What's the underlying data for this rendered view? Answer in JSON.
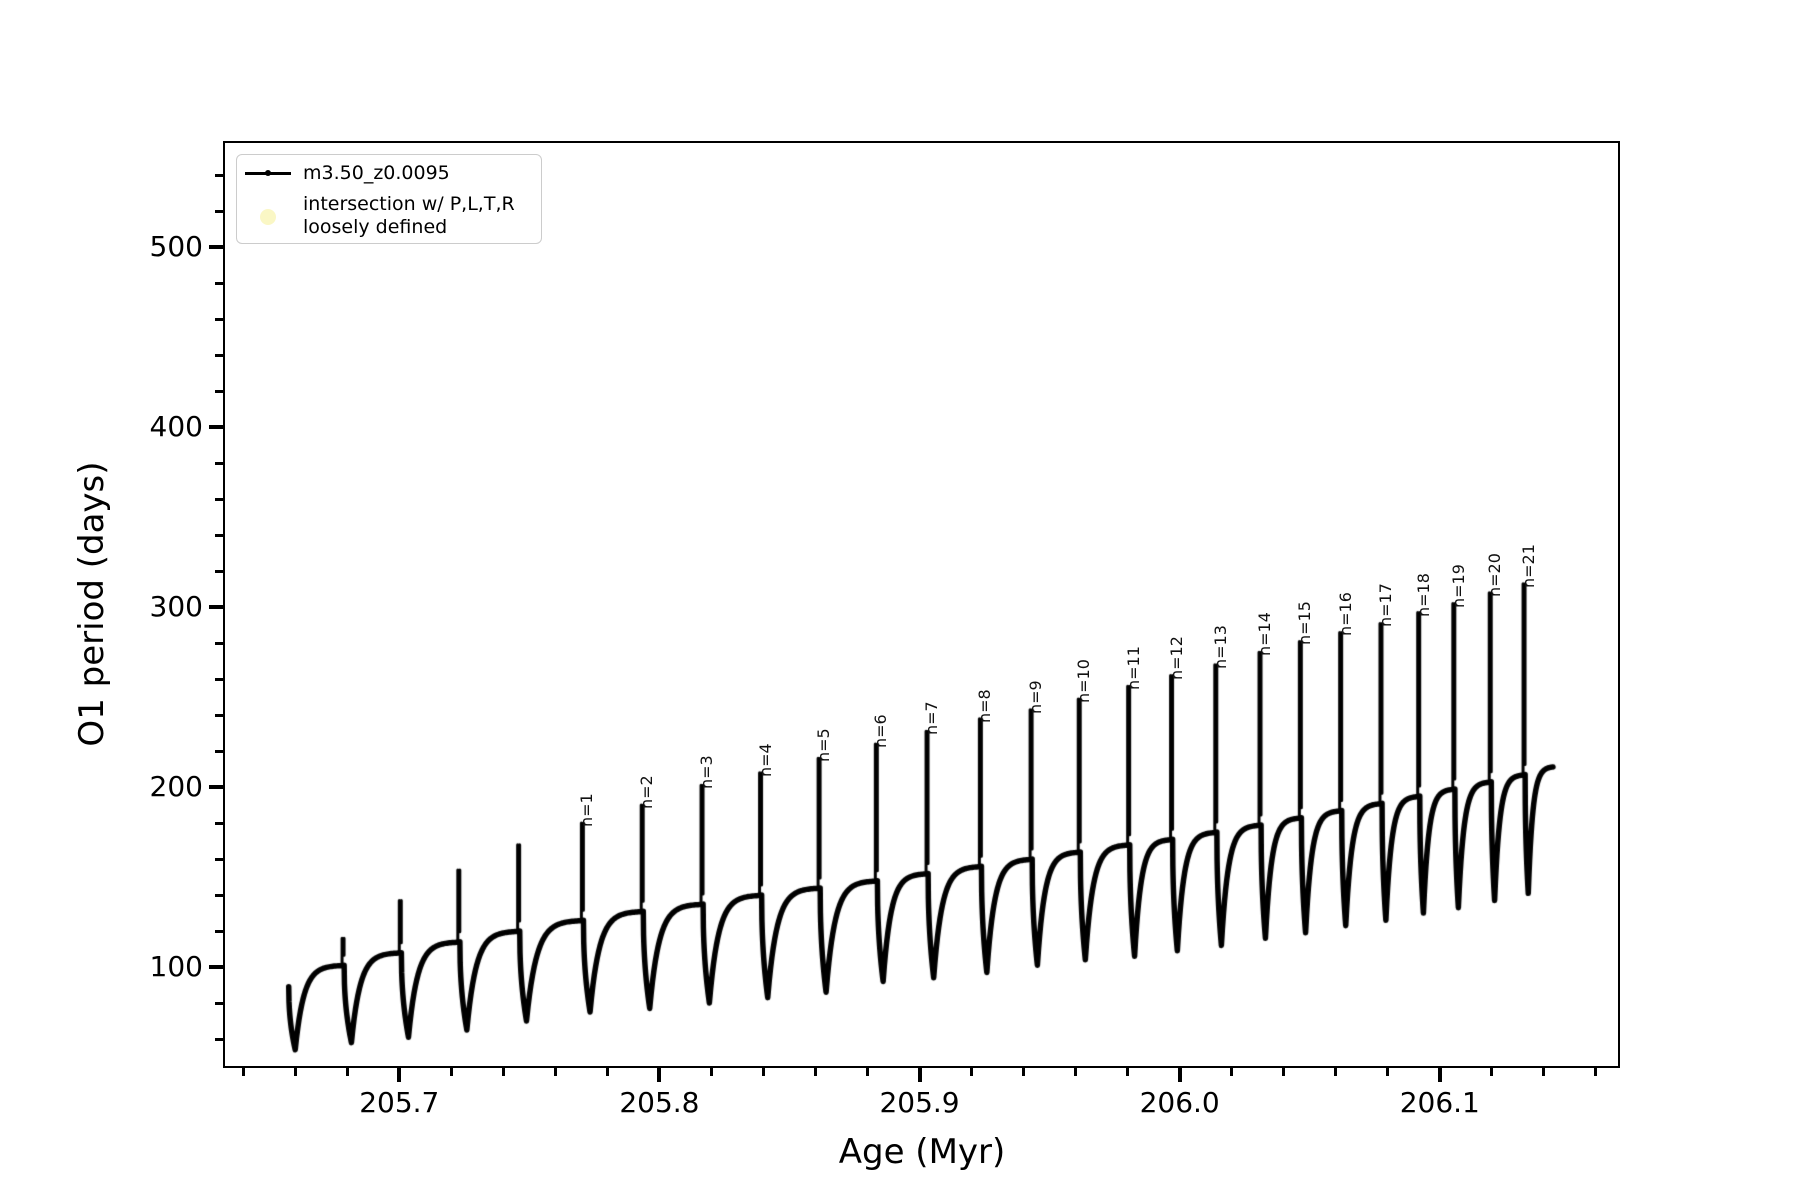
{
  "figure": {
    "background": "#ffffff"
  },
  "axes": {
    "xlabel": "Age (Myr)",
    "ylabel": "O1 period (days)",
    "xlim": [
      205.633,
      206.1685
    ],
    "ylim": [
      45,
      558
    ],
    "x_major_ticks": [
      205.7,
      205.8,
      205.9,
      206.0,
      206.1
    ],
    "x_major_labels": [
      "205.7",
      "205.8",
      "205.9",
      "206.0",
      "206.1"
    ],
    "x_minor_start": 205.64,
    "x_minor_end": 206.16,
    "x_minor_step": 0.02,
    "y_major_ticks": [
      100,
      200,
      300,
      400,
      500
    ],
    "y_major_labels": [
      "100",
      "200",
      "300",
      "400",
      "500"
    ],
    "y_minor_start": 60,
    "y_minor_end": 540,
    "y_minor_step": 20
  },
  "legend": {
    "entries": [
      {
        "marker": "line-dot",
        "color": "#000000",
        "label": "m3.50_z0.0095"
      },
      {
        "marker": "circle",
        "color": "#faf7c5",
        "label_lines": [
          "intersection w/ P,L,T,R",
          "loosely defined"
        ]
      }
    ]
  },
  "chart_data": {
    "type": "line",
    "series_name": "m3.50_z0.0095",
    "xlabel": "Age (Myr)",
    "ylabel": "O1 period (days)",
    "line_color": "#000000",
    "marker": "point",
    "start_point": {
      "age": 205.6575,
      "period": 89
    },
    "first_dip": {
      "age": 205.66,
      "period": 54
    },
    "end_point": {
      "age": 206.1435,
      "period": 211
    },
    "end_plateau": 211.5,
    "cycles": [
      {
        "label": null,
        "spike_age": 205.678,
        "peak": 116,
        "plateau": 101,
        "dip_after": 58
      },
      {
        "label": null,
        "spike_age": 205.7,
        "peak": 137,
        "plateau": 108,
        "dip_after": 61
      },
      {
        "label": null,
        "spike_age": 205.7225,
        "peak": 154,
        "plateau": 114,
        "dip_after": 65
      },
      {
        "label": null,
        "spike_age": 205.7455,
        "peak": 168,
        "plateau": 120,
        "dip_after": 70
      },
      {
        "label": "n=1",
        "spike_age": 205.77,
        "peak": 180,
        "plateau": 126,
        "dip_after": 75
      },
      {
        "label": "n=2",
        "spike_age": 205.793,
        "peak": 190,
        "plateau": 131,
        "dip_after": 77
      },
      {
        "label": "n=3",
        "spike_age": 205.816,
        "peak": 201,
        "plateau": 135,
        "dip_after": 80
      },
      {
        "label": "n=4",
        "spike_age": 205.8385,
        "peak": 208,
        "plateau": 140,
        "dip_after": 83
      },
      {
        "label": "n=5",
        "spike_age": 205.861,
        "peak": 216,
        "plateau": 144,
        "dip_after": 86
      },
      {
        "label": "n=6",
        "spike_age": 205.883,
        "peak": 224,
        "plateau": 148,
        "dip_after": 92
      },
      {
        "label": "n=7",
        "spike_age": 205.9025,
        "peak": 231,
        "plateau": 152,
        "dip_after": 94
      },
      {
        "label": "n=8",
        "spike_age": 205.923,
        "peak": 238,
        "plateau": 156,
        "dip_after": 97
      },
      {
        "label": "n=9",
        "spike_age": 205.9425,
        "peak": 243,
        "plateau": 160,
        "dip_after": 101
      },
      {
        "label": "n=10",
        "spike_age": 205.961,
        "peak": 249,
        "plateau": 164,
        "dip_after": 104
      },
      {
        "label": "n=11",
        "spike_age": 205.98,
        "peak": 256,
        "plateau": 168,
        "dip_after": 106
      },
      {
        "label": "n=12",
        "spike_age": 205.9965,
        "peak": 262,
        "plateau": 171,
        "dip_after": 109
      },
      {
        "label": "n=13",
        "spike_age": 206.0135,
        "peak": 268,
        "plateau": 175,
        "dip_after": 112
      },
      {
        "label": "n=14",
        "spike_age": 206.0305,
        "peak": 275,
        "plateau": 179,
        "dip_after": 116
      },
      {
        "label": "n=15",
        "spike_age": 206.046,
        "peak": 281,
        "plateau": 183,
        "dip_after": 119
      },
      {
        "label": "n=16",
        "spike_age": 206.0615,
        "peak": 286,
        "plateau": 187,
        "dip_after": 123
      },
      {
        "label": "n=17",
        "spike_age": 206.077,
        "peak": 291,
        "plateau": 191,
        "dip_after": 126
      },
      {
        "label": "n=18",
        "spike_age": 206.0915,
        "peak": 297,
        "plateau": 195,
        "dip_after": 130
      },
      {
        "label": "n=19",
        "spike_age": 206.105,
        "peak": 302,
        "plateau": 199,
        "dip_after": 133
      },
      {
        "label": "n=20",
        "spike_age": 206.119,
        "peak": 308,
        "plateau": 203,
        "dip_after": 137
      },
      {
        "label": "n=21",
        "spike_age": 206.132,
        "peak": 313,
        "plateau": 207,
        "dip_after": 141
      }
    ]
  }
}
